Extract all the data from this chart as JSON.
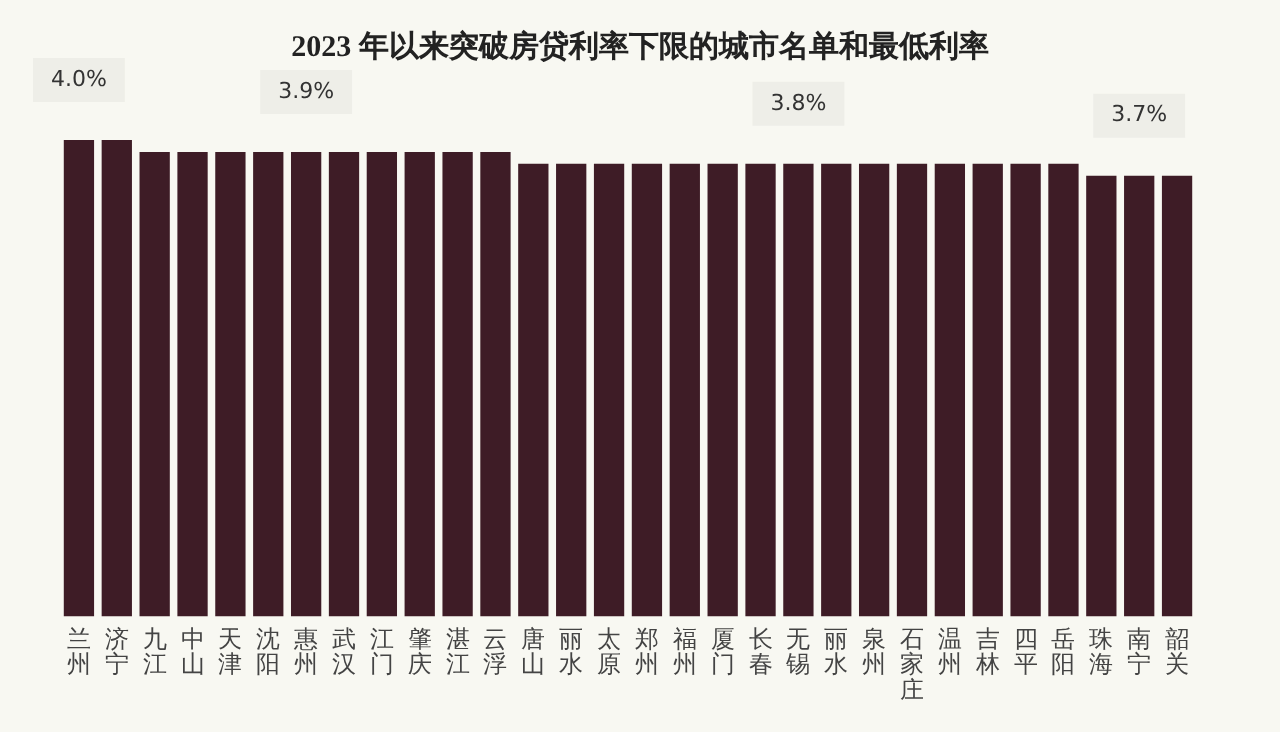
{
  "chart_data": {
    "type": "bar",
    "title": "2023 年以来突破房贷利率下限的城市名单和最低利率",
    "categories": [
      "兰州",
      "济宁",
      "九江",
      "中山",
      "天津",
      "沈阳",
      "惠州",
      "武汉",
      "江门",
      "肇庆",
      "湛江",
      "云浮",
      "唐山",
      "丽水",
      "太原",
      "郑州",
      "福州",
      "厦门",
      "长春",
      "无锡",
      "丽水",
      "泉州",
      "石家庄",
      "温州",
      "吉林",
      "四平",
      "岳阳",
      "珠海",
      "南宁",
      "韶关"
    ],
    "values": [
      4.0,
      4.0,
      3.9,
      3.9,
      3.9,
      3.9,
      3.9,
      3.9,
      3.9,
      3.9,
      3.9,
      3.9,
      3.8,
      3.8,
      3.8,
      3.8,
      3.8,
      3.8,
      3.8,
      3.8,
      3.8,
      3.8,
      3.8,
      3.8,
      3.8,
      3.8,
      3.8,
      3.7,
      3.7,
      3.7
    ],
    "value_labels": [
      "4.0%",
      null,
      null,
      null,
      null,
      null,
      "3.9%",
      null,
      null,
      null,
      null,
      null,
      null,
      null,
      null,
      null,
      null,
      null,
      null,
      "3.8%",
      null,
      null,
      null,
      null,
      null,
      null,
      null,
      null,
      "3.7%",
      null
    ],
    "color": "#3e1c26",
    "tick_labels": "x",
    "grid": false,
    "legend": false
  }
}
